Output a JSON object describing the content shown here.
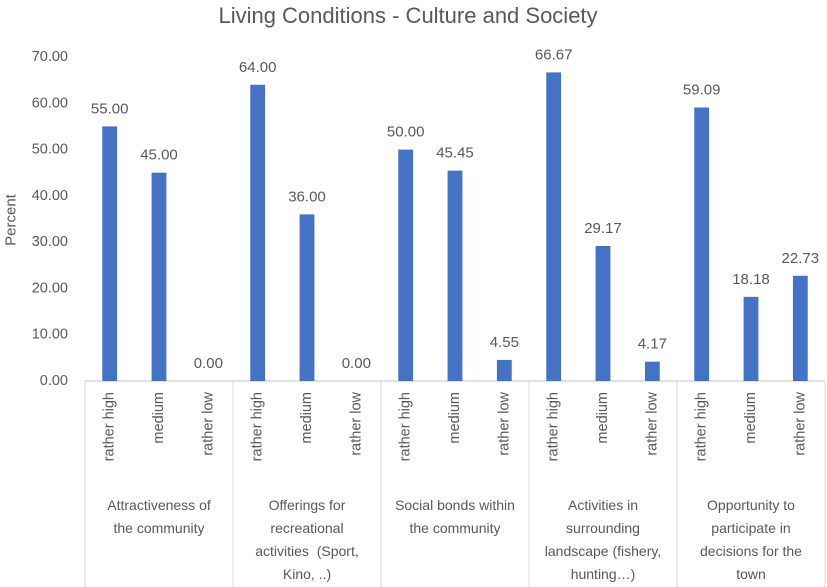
{
  "chart_data": {
    "type": "bar",
    "title": "Living Conditions - Culture and Society",
    "ylabel": "Percent",
    "ylim": [
      0,
      70
    ],
    "ytick_labels": [
      "0.00",
      "10.00",
      "20.00",
      "30.00",
      "40.00",
      "50.00",
      "60.00",
      "70.00"
    ],
    "grid": false,
    "groups": [
      {
        "label_lines": [
          "Attractiveness of",
          "the community"
        ],
        "categories": [
          "rather high",
          "medium",
          "rather low"
        ],
        "values": [
          55.0,
          45.0,
          0.0
        ]
      },
      {
        "label_lines": [
          "Offerings for",
          "recreational",
          "activities  (Sport,",
          "Kino, ..)"
        ],
        "categories": [
          "rather high",
          "medium",
          "rather low"
        ],
        "values": [
          64.0,
          36.0,
          0.0
        ]
      },
      {
        "label_lines": [
          "Social bonds within",
          "the community"
        ],
        "categories": [
          "rather high",
          "medium",
          "rather low"
        ],
        "values": [
          50.0,
          45.45,
          4.55
        ]
      },
      {
        "label_lines": [
          "Activities in",
          "surrounding",
          "landscape (fishery,",
          "hunting…)"
        ],
        "categories": [
          "rather high",
          "medium",
          "rather low"
        ],
        "values": [
          66.67,
          29.17,
          4.17
        ]
      },
      {
        "label_lines": [
          "Opportunity to",
          "participate in",
          "decisions for the",
          "town"
        ],
        "categories": [
          "rather high",
          "medium",
          "rather low"
        ],
        "values": [
          59.09,
          18.18,
          22.73
        ]
      }
    ],
    "colors": {
      "bar": "#4472C4",
      "text": "#595959",
      "axis": "#D9D9D9"
    }
  }
}
